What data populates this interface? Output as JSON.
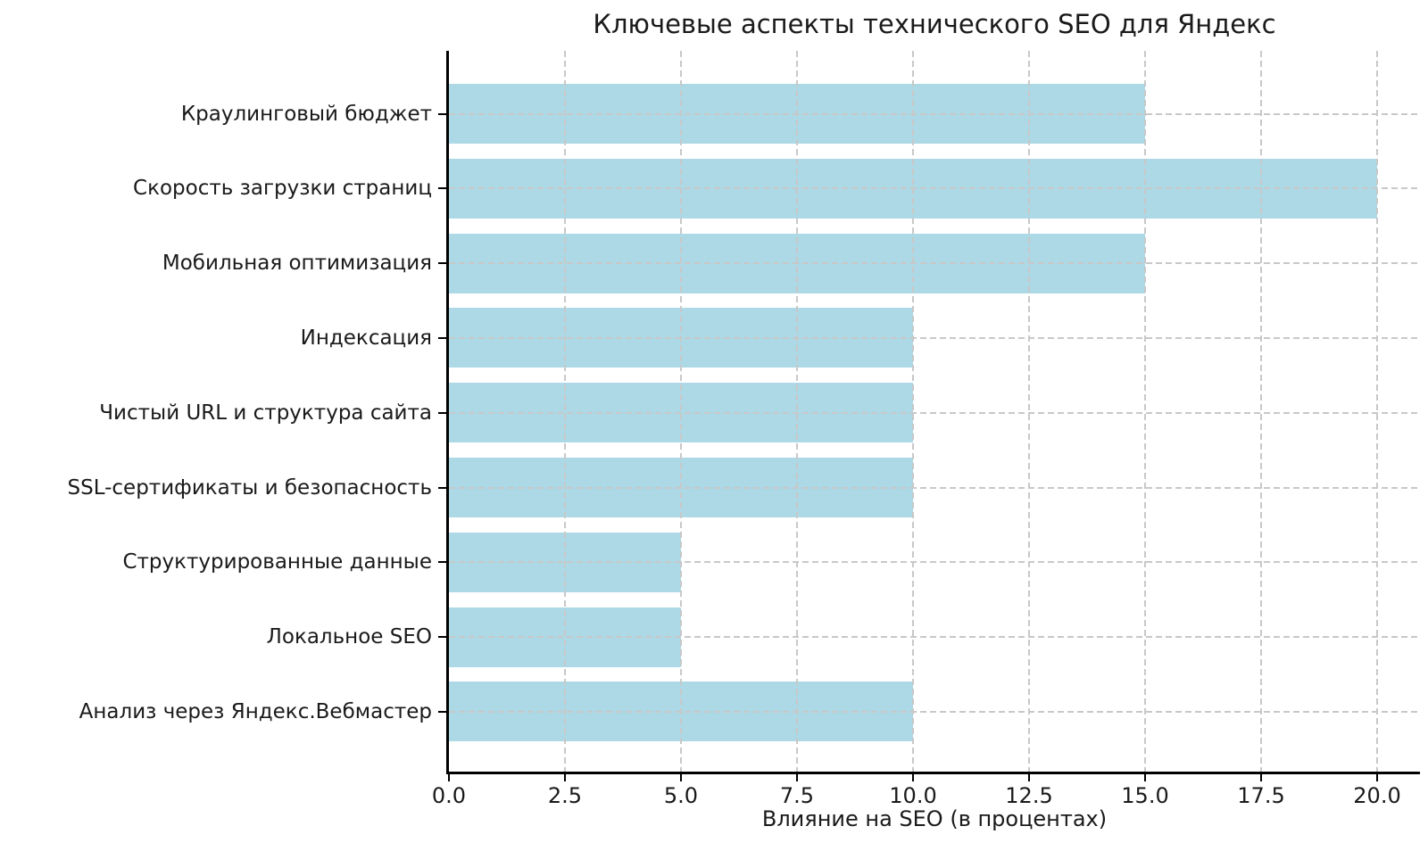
{
  "chart_data": {
    "type": "bar",
    "orientation": "horizontal",
    "title": "Ключевые аспекты технического SEO для Яндекс",
    "xlabel": "Влияние на SEO (в процентах)",
    "ylabel": "",
    "categories": [
      "Краулинговый бюджет",
      "Скорость загрузки страниц",
      "Мобильная оптимизация",
      "Индексация",
      "Чистый URL и структура сайта",
      "SSL-сертификаты и безопасность",
      "Структурированные данные",
      "Локальное SEO",
      "Анализ через Яндекс.Вебмастер"
    ],
    "values": [
      15,
      20,
      15,
      10,
      10,
      10,
      5,
      5,
      10
    ],
    "xlim": [
      0,
      20.9
    ],
    "xticks": [
      0.0,
      2.5,
      5.0,
      7.5,
      10.0,
      12.5,
      15.0,
      17.5,
      20.0
    ],
    "xtick_labels": [
      "0.0",
      "2.5",
      "5.0",
      "7.5",
      "10.0",
      "12.5",
      "15.0",
      "17.5",
      "20.0"
    ],
    "bar_color": "#ADD8E6",
    "grid": true,
    "grid_style": "dashed",
    "grid_color": "#c8c8c8",
    "grid_over_bars": true,
    "background": "#ffffff",
    "legend": null
  }
}
